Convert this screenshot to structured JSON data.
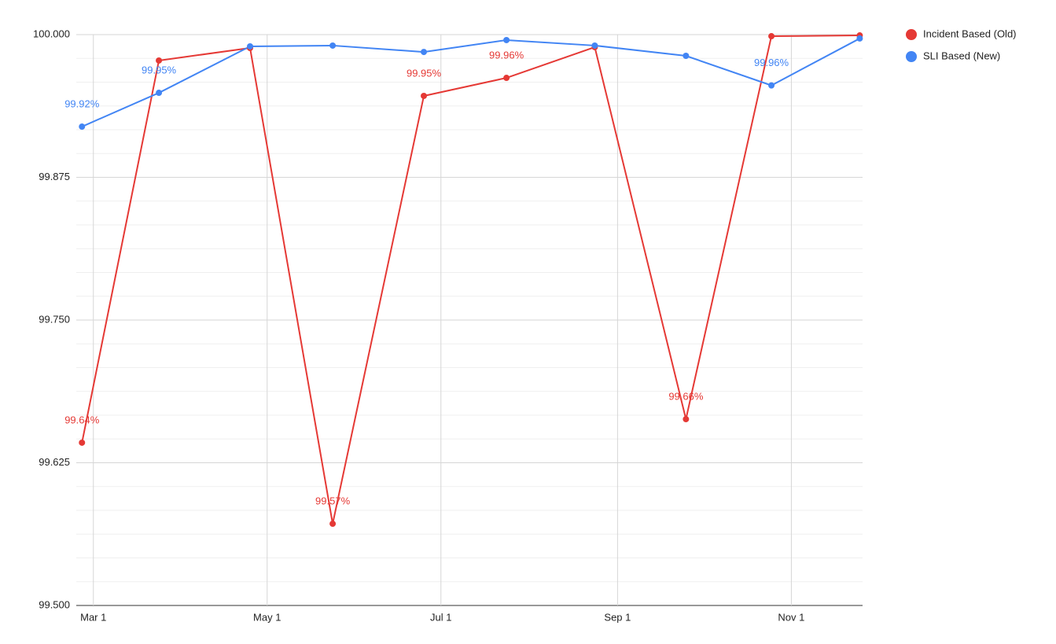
{
  "chart_data": {
    "type": "line",
    "x": [
      "Feb 25",
      "Mar 24",
      "Apr 25",
      "May 24",
      "Jun 25",
      "Jul 24",
      "Aug 24",
      "Sep 25",
      "Oct 25",
      "Nov 25"
    ],
    "series": [
      {
        "name": "Incident Based (Old)",
        "color": "#e53935",
        "values": [
          99.6426,
          99.9773,
          99.9883,
          99.5716,
          99.9463,
          99.9621,
          99.989,
          99.6632,
          99.9986,
          99.9993
        ],
        "value_labels": [
          "99.64%",
          null,
          null,
          "99.57%",
          "99.95%",
          "99.96%",
          null,
          "99.66%",
          null,
          null
        ]
      },
      {
        "name": "SLI Based (New)",
        "color": "#4285f4",
        "values": [
          99.9194,
          99.949,
          99.9897,
          99.9904,
          99.9848,
          99.9952,
          99.9904,
          99.9814,
          99.9555,
          99.9966
        ],
        "value_labels": [
          "99.92%",
          "99.95%",
          null,
          null,
          null,
          null,
          null,
          null,
          "99.96%",
          null
        ]
      }
    ],
    "xlim": [
      "Feb 23",
      "Nov 26"
    ],
    "xticks": [
      "Mar 1",
      "May 1",
      "Jul 1",
      "Sep 1",
      "Nov 1"
    ],
    "ylim": [
      99.5,
      100
    ],
    "yticks": [
      {
        "value": 99.5,
        "label": "99.500"
      },
      {
        "value": 99.625,
        "label": "99.625"
      },
      {
        "value": 99.75,
        "label": "99.750"
      },
      {
        "value": 99.875,
        "label": "99.875"
      },
      {
        "value": 100,
        "label": "100.000"
      }
    ],
    "grid": true,
    "minor_grid": 5,
    "legend": "top-right"
  }
}
